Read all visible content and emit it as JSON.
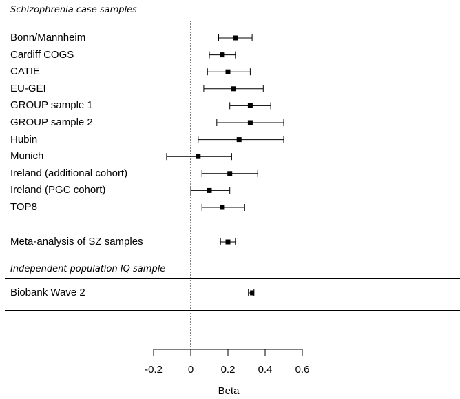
{
  "chart_data": {
    "type": "forest",
    "sections": {
      "sz_title": "Schizophrenia case samples",
      "meta_label": "Meta-analysis of SZ samples",
      "pop_title": "Independent population IQ sample",
      "biobank_label": "Biobank Wave 2"
    },
    "studies": [
      {
        "label": "Bonn/Mannheim",
        "beta": 0.24,
        "lo": 0.15,
        "hi": 0.33
      },
      {
        "label": "Cardiff COGS",
        "beta": 0.17,
        "lo": 0.1,
        "hi": 0.24
      },
      {
        "label": "CATIE",
        "beta": 0.2,
        "lo": 0.09,
        "hi": 0.32
      },
      {
        "label": "EU-GEI",
        "beta": 0.23,
        "lo": 0.07,
        "hi": 0.39
      },
      {
        "label": "GROUP sample 1",
        "beta": 0.32,
        "lo": 0.21,
        "hi": 0.43
      },
      {
        "label": "GROUP sample 2",
        "beta": 0.32,
        "lo": 0.14,
        "hi": 0.5
      },
      {
        "label": "Hubin",
        "beta": 0.26,
        "lo": 0.04,
        "hi": 0.5
      },
      {
        "label": "Munich",
        "beta": 0.04,
        "lo": -0.13,
        "hi": 0.22
      },
      {
        "label": "Ireland (additional cohort)",
        "beta": 0.21,
        "lo": 0.06,
        "hi": 0.36
      },
      {
        "label": "Ireland (PGC cohort)",
        "beta": 0.1,
        "lo": 0.0,
        "hi": 0.21
      },
      {
        "label": "TOP8",
        "beta": 0.17,
        "lo": 0.06,
        "hi": 0.29
      }
    ],
    "meta": {
      "beta": 0.2,
      "lo": 0.16,
      "hi": 0.24
    },
    "biobank": {
      "beta": 0.33,
      "lo": 0.31,
      "hi": 0.34
    },
    "xlabel": "Beta",
    "xlim": [
      -0.2,
      0.6
    ],
    "ticks": [
      "-0.2",
      "0",
      "0.2",
      "0.4",
      "0.6"
    ],
    "reference_line": 0
  }
}
